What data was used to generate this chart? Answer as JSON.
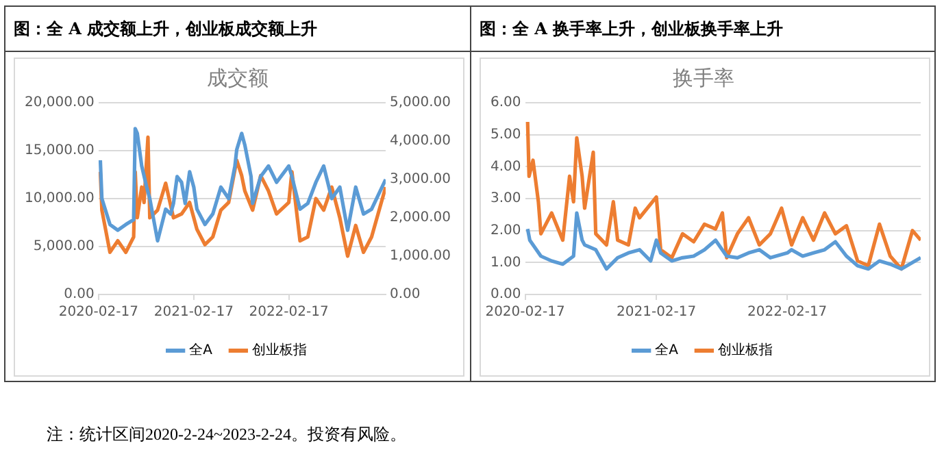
{
  "chart_data": [
    {
      "type": "line",
      "title": "图：全 A 成交额上升，创业板成交额上升",
      "subtitle": "成交额",
      "annotations": [
        "注：统计区间2020-2-24~2023-2-24。投资有风险。"
      ],
      "xlim": [
        "2020-02-17",
        "2023-02-24"
      ],
      "xticks": [
        "2020-02-17",
        "2021-02-17",
        "2022-02-17"
      ],
      "ylim": [
        0,
        20000
      ],
      "yticks": [
        {
          "value": 0,
          "label": "0.00"
        },
        {
          "value": 5000,
          "label": "5,000.00"
        },
        {
          "value": 10000,
          "label": "10,000.00"
        },
        {
          "value": 15000,
          "label": "15,000.00"
        },
        {
          "value": 20000,
          "label": "20,000.00"
        }
      ],
      "y2lim": [
        0,
        5000
      ],
      "y2ticks": [
        {
          "value": 0,
          "label": "0.00"
        },
        {
          "value": 1000,
          "label": "1,000.00"
        },
        {
          "value": 2000,
          "label": "2,000.00"
        },
        {
          "value": 3000,
          "label": "3,000.00"
        },
        {
          "value": 4000,
          "label": "4,000.00"
        },
        {
          "value": 5000,
          "label": "5,000.00"
        }
      ],
      "grid": "y",
      "legend": "bottom",
      "marker": "none",
      "line_style": "solid",
      "series": [
        {
          "name": "全A",
          "color": "#5b9bd5",
          "x": [
            "2020-02-24",
            "2020-03-01",
            "2020-04-01",
            "2020-05-01",
            "2020-06-01",
            "2020-07-01",
            "2020-07-07",
            "2020-07-15",
            "2020-08-01",
            "2020-08-20",
            "2020-09-01",
            "2020-10-01",
            "2020-11-01",
            "2020-11-20",
            "2020-12-01",
            "2020-12-15",
            "2021-01-01",
            "2021-01-15",
            "2021-02-01",
            "2021-02-17",
            "2021-03-01",
            "2021-04-01",
            "2021-05-01",
            "2021-06-01",
            "2021-07-01",
            "2021-07-25",
            "2021-08-01",
            "2021-08-20",
            "2021-09-01",
            "2021-09-25",
            "2021-10-01",
            "2021-11-01",
            "2021-12-01",
            "2022-01-01",
            "2022-02-17",
            "2022-03-01",
            "2022-04-01",
            "2022-05-01",
            "2022-06-01",
            "2022-07-01",
            "2022-08-01",
            "2022-09-01",
            "2022-10-01",
            "2022-11-01",
            "2022-12-01",
            "2023-01-01",
            "2023-02-24"
          ],
          "values": [
            14000,
            10000,
            7300,
            6700,
            7300,
            7800,
            17300,
            16800,
            13400,
            11200,
            10000,
            5600,
            8900,
            8400,
            9500,
            12300,
            11700,
            9500,
            12800,
            11200,
            8900,
            7300,
            8400,
            11200,
            10000,
            13400,
            15100,
            16800,
            15600,
            12300,
            9500,
            12300,
            13400,
            11700,
            13400,
            12300,
            8900,
            9500,
            11700,
            13400,
            10000,
            11200,
            6700,
            11200,
            8400,
            8900,
            12000
          ]
        },
        {
          "name": "创业板指",
          "color": "#ed7d31",
          "axis": "y2",
          "x": [
            "2020-02-24",
            "2020-03-01",
            "2020-04-01",
            "2020-05-01",
            "2020-06-01",
            "2020-07-01",
            "2020-07-07",
            "2020-07-15",
            "2020-08-01",
            "2020-08-10",
            "2020-08-25",
            "2020-09-01",
            "2020-10-01",
            "2020-11-01",
            "2020-12-01",
            "2021-01-01",
            "2021-02-01",
            "2021-03-01",
            "2021-04-01",
            "2021-05-01",
            "2021-06-01",
            "2021-07-01",
            "2021-08-01",
            "2021-08-20",
            "2021-09-01",
            "2021-10-01",
            "2021-11-01",
            "2021-12-01",
            "2022-01-01",
            "2022-02-17",
            "2022-03-01",
            "2022-04-01",
            "2022-05-01",
            "2022-06-01",
            "2022-07-01",
            "2022-08-01",
            "2022-09-01",
            "2022-10-01",
            "2022-11-01",
            "2022-12-01",
            "2023-01-01",
            "2023-02-24"
          ],
          "values": [
            3200,
            2200,
            1100,
            1400,
            1100,
            1500,
            3200,
            2000,
            2800,
            2400,
            4100,
            2000,
            2200,
            2900,
            2000,
            2100,
            2400,
            1700,
            1300,
            1500,
            2200,
            2400,
            3500,
            3100,
            2700,
            2200,
            3100,
            2700,
            2100,
            2400,
            3200,
            1400,
            1500,
            2500,
            2200,
            2800,
            2000,
            1000,
            1800,
            1100,
            1500,
            2800
          ]
        }
      ]
    },
    {
      "type": "line",
      "title": "图：全 A 换手率上升，创业板换手率上升",
      "subtitle": "换手率",
      "xlim": [
        "2020-02-17",
        "2023-02-24"
      ],
      "xticks": [
        "2020-02-17",
        "2021-02-17",
        "2022-02-17"
      ],
      "ylim": [
        0,
        6
      ],
      "yticks": [
        {
          "value": 0,
          "label": "0.00"
        },
        {
          "value": 1,
          "label": "1.00"
        },
        {
          "value": 2,
          "label": "2.00"
        },
        {
          "value": 3,
          "label": "3.00"
        },
        {
          "value": 4,
          "label": "4.00"
        },
        {
          "value": 5,
          "label": "5.00"
        },
        {
          "value": 6,
          "label": "6.00"
        }
      ],
      "grid": "y",
      "legend": "bottom",
      "marker": "none",
      "line_style": "solid",
      "series": [
        {
          "name": "全A",
          "color": "#5b9bd5",
          "x": [
            "2020-02-24",
            "2020-03-01",
            "2020-04-01",
            "2020-05-01",
            "2020-06-01",
            "2020-07-01",
            "2020-07-10",
            "2020-07-25",
            "2020-08-01",
            "2020-09-01",
            "2020-10-01",
            "2020-11-01",
            "2020-12-01",
            "2021-01-01",
            "2021-02-01",
            "2021-02-17",
            "2021-03-01",
            "2021-04-01",
            "2021-05-01",
            "2021-06-01",
            "2021-07-01",
            "2021-08-01",
            "2021-09-01",
            "2021-10-01",
            "2021-11-01",
            "2021-12-01",
            "2022-01-01",
            "2022-02-17",
            "2022-03-01",
            "2022-04-01",
            "2022-05-01",
            "2022-06-01",
            "2022-07-01",
            "2022-08-01",
            "2022-09-01",
            "2022-10-01",
            "2022-11-01",
            "2022-12-01",
            "2023-01-01",
            "2023-02-24"
          ],
          "values": [
            2.05,
            1.7,
            1.2,
            1.05,
            0.95,
            1.2,
            2.55,
            1.7,
            1.55,
            1.4,
            0.8,
            1.15,
            1.3,
            1.4,
            1.05,
            1.7,
            1.3,
            1.05,
            1.15,
            1.2,
            1.4,
            1.7,
            1.2,
            1.15,
            1.3,
            1.4,
            1.15,
            1.3,
            1.4,
            1.2,
            1.3,
            1.4,
            1.65,
            1.2,
            0.9,
            0.8,
            1.05,
            0.95,
            0.8,
            1.15
          ]
        },
        {
          "name": "创业板指",
          "color": "#ed7d31",
          "x": [
            "2020-02-24",
            "2020-02-28",
            "2020-03-10",
            "2020-03-25",
            "2020-04-01",
            "2020-05-01",
            "2020-06-01",
            "2020-06-20",
            "2020-07-01",
            "2020-07-10",
            "2020-07-25",
            "2020-08-01",
            "2020-08-25",
            "2020-09-01",
            "2020-10-01",
            "2020-10-20",
            "2020-11-01",
            "2020-12-01",
            "2020-12-20",
            "2021-01-01",
            "2021-02-17",
            "2021-03-01",
            "2021-04-01",
            "2021-05-01",
            "2021-06-01",
            "2021-07-01",
            "2021-08-01",
            "2021-08-20",
            "2021-09-01",
            "2021-10-01",
            "2021-11-01",
            "2021-12-01",
            "2022-01-01",
            "2022-02-01",
            "2022-03-01",
            "2022-04-01",
            "2022-05-01",
            "2022-06-01",
            "2022-07-01",
            "2022-08-01",
            "2022-09-01",
            "2022-10-01",
            "2022-11-01",
            "2022-12-01",
            "2023-01-01",
            "2023-02-01",
            "2023-02-24"
          ],
          "values": [
            5.4,
            3.7,
            4.2,
            2.9,
            1.9,
            2.55,
            1.7,
            3.7,
            2.9,
            4.9,
            3.7,
            2.7,
            4.45,
            1.9,
            1.55,
            2.9,
            1.7,
            1.55,
            2.7,
            2.4,
            3.05,
            1.4,
            1.15,
            1.9,
            1.65,
            2.2,
            2.05,
            2.55,
            1.15,
            1.9,
            2.4,
            1.55,
            1.9,
            2.7,
            1.55,
            2.4,
            1.7,
            2.55,
            1.9,
            2.15,
            1.05,
            0.9,
            2.2,
            1.2,
            0.8,
            2.0,
            1.7
          ]
        }
      ]
    }
  ]
}
